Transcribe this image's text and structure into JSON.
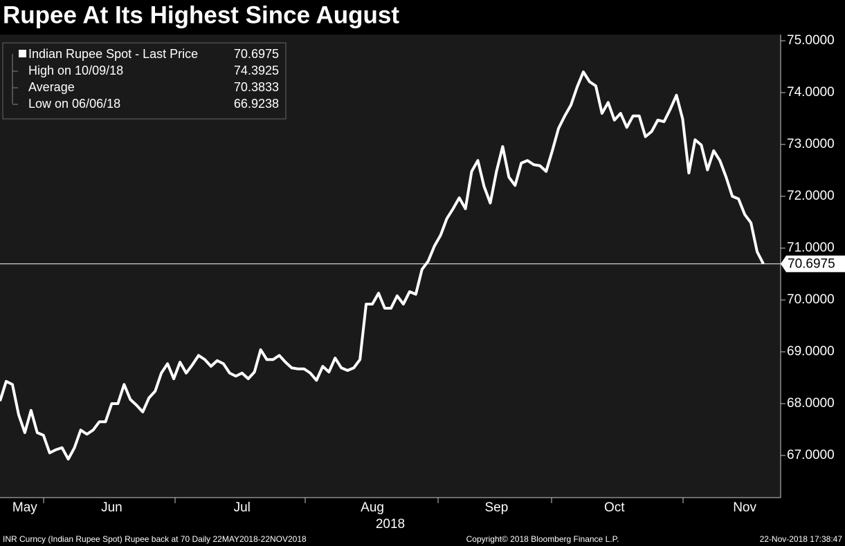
{
  "chart_data": {
    "type": "line",
    "title": "Rupee At Its Highest Since August",
    "x_label": "2018",
    "categories": [
      null,
      null,
      null,
      null,
      "May",
      null,
      null,
      null,
      null,
      null,
      null,
      null,
      null,
      null,
      null,
      null,
      null,
      null,
      "Jun",
      null,
      null,
      null,
      null,
      null,
      null,
      null,
      null,
      null,
      null,
      null,
      null,
      null,
      null,
      null,
      null,
      null,
      null,
      null,
      null,
      "Jul",
      null,
      null,
      null,
      null,
      null,
      null,
      null,
      null,
      null,
      null,
      null,
      null,
      null,
      null,
      null,
      null,
      null,
      null,
      null,
      null,
      "Aug",
      null,
      null,
      null,
      null,
      null,
      null,
      null,
      null,
      null,
      null,
      null,
      null,
      null,
      null,
      null,
      null,
      null,
      null,
      null,
      "Sep",
      null,
      null,
      null,
      null,
      null,
      null,
      null,
      null,
      null,
      null,
      null,
      null,
      null,
      null,
      null,
      null,
      null,
      null,
      "Oct",
      null,
      null,
      null,
      null,
      null,
      null,
      null,
      null,
      null,
      null,
      null,
      null,
      null,
      null,
      null,
      null,
      null,
      null,
      null,
      null,
      "Nov",
      null,
      null,
      null
    ],
    "series": [
      {
        "name": "Indian Rupee Spot - Last Price",
        "color": "#ffffff",
        "values": [
          68.05,
          68.43,
          68.37,
          67.79,
          67.44,
          67.87,
          67.44,
          67.39,
          67.05,
          67.11,
          67.15,
          66.93,
          67.15,
          67.49,
          67.41,
          67.49,
          67.65,
          67.65,
          68.0,
          68.0,
          68.37,
          68.08,
          67.97,
          67.84,
          68.11,
          68.24,
          68.59,
          68.77,
          68.48,
          68.8,
          68.59,
          68.75,
          68.93,
          68.85,
          68.72,
          68.83,
          68.77,
          68.59,
          68.53,
          68.59,
          68.48,
          68.61,
          69.04,
          68.85,
          68.85,
          68.93,
          68.8,
          68.69,
          68.67,
          68.67,
          68.59,
          68.45,
          68.72,
          68.61,
          68.88,
          68.69,
          68.64,
          68.69,
          68.85,
          69.92,
          69.92,
          70.13,
          69.84,
          69.84,
          70.08,
          69.92,
          70.16,
          70.11,
          70.59,
          70.75,
          71.04,
          71.25,
          71.57,
          71.76,
          71.97,
          71.76,
          72.48,
          72.69,
          72.19,
          71.87,
          72.48,
          72.96,
          72.37,
          72.21,
          72.64,
          72.69,
          72.61,
          72.59,
          72.48,
          72.88,
          73.31,
          73.55,
          73.76,
          74.11,
          74.4,
          74.21,
          74.13,
          73.6,
          73.81,
          73.47,
          73.6,
          73.33,
          73.55,
          73.55,
          73.15,
          73.25,
          73.47,
          73.44,
          73.68,
          73.95,
          73.49,
          72.45,
          73.09,
          72.99,
          72.51,
          72.88,
          72.69,
          72.37,
          72.0,
          71.95,
          71.65,
          71.49,
          70.93,
          70.6975
        ]
      }
    ],
    "last_price": 70.6975,
    "stats": [
      {
        "label": "High on 10/09/18",
        "value": 74.3925
      },
      {
        "label": "Average",
        "value": 70.3833
      },
      {
        "label": "Low on 06/06/18",
        "value": 66.9238
      }
    ],
    "ylim": [
      66.187,
      75.12
    ],
    "yticks": [
      {
        "value": 67,
        "label": "67.0000"
      },
      {
        "value": 68,
        "label": "68.0000"
      },
      {
        "value": 69,
        "label": "69.0000"
      },
      {
        "value": 70,
        "label": "70.0000"
      },
      {
        "value": 71,
        "label": "71.0000"
      },
      {
        "value": 72,
        "label": "72.0000"
      },
      {
        "value": 73,
        "label": "73.0000"
      },
      {
        "value": 74,
        "label": "74.0000"
      },
      {
        "value": 75,
        "label": "75.0000"
      }
    ],
    "grid": false,
    "footer": {
      "left": "INR Curncy (Indian Rupee Spot) Rupee back at 70  Daily 22MAY2018-22NOV2018",
      "center": "Copyright© 2018 Bloomberg Finance L.P.",
      "right": "22-Nov-2018 17:38:47"
    }
  }
}
